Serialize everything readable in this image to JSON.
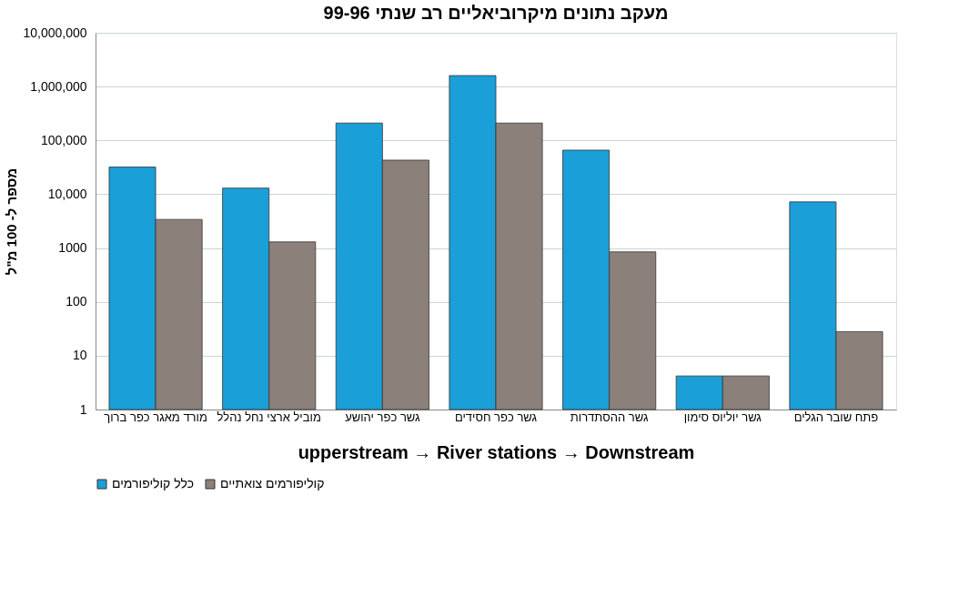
{
  "chart_data": {
    "type": "bar",
    "title": "מעקב נתונים מיקרוביאליים רב שנתי 99-96",
    "xlabel": "upperstream  →    River stations  →   Downstream",
    "ylabel": "מספר ל- 100 מ\"ל",
    "categories": [
      "מורד מאגר כפר ברוך",
      "מוביל ארצי נחל נהלל",
      "גשר כפר יהושע",
      "גשר כפר חסידים",
      "גשר ההסתדרות",
      "גשר יוליוס סימון",
      "פתח שובר הגלים"
    ],
    "series": [
      {
        "name": "כלל קוליפורמים",
        "color": "#1a9fd9",
        "values": [
          32000,
          13000,
          210000,
          1600000,
          66000,
          4.2,
          7200
        ]
      },
      {
        "name": "קוליפורמים צואתיים",
        "color": "#8c807b",
        "values": [
          3400,
          1300,
          43000,
          210000,
          850,
          4.2,
          28
        ]
      }
    ],
    "log": "y",
    "ylim": [
      1,
      10000000
    ],
    "yticks": [
      1,
      10,
      100,
      1000,
      {
        "value": 10000,
        "label": "10,000"
      },
      {
        "value": 100000,
        "label": "100,000"
      },
      {
        "value": 1000000,
        "label": "1,000,000"
      },
      {
        "value": 10000000,
        "label": "10,000,000"
      }
    ],
    "grid": "y",
    "legend": "bottom"
  }
}
